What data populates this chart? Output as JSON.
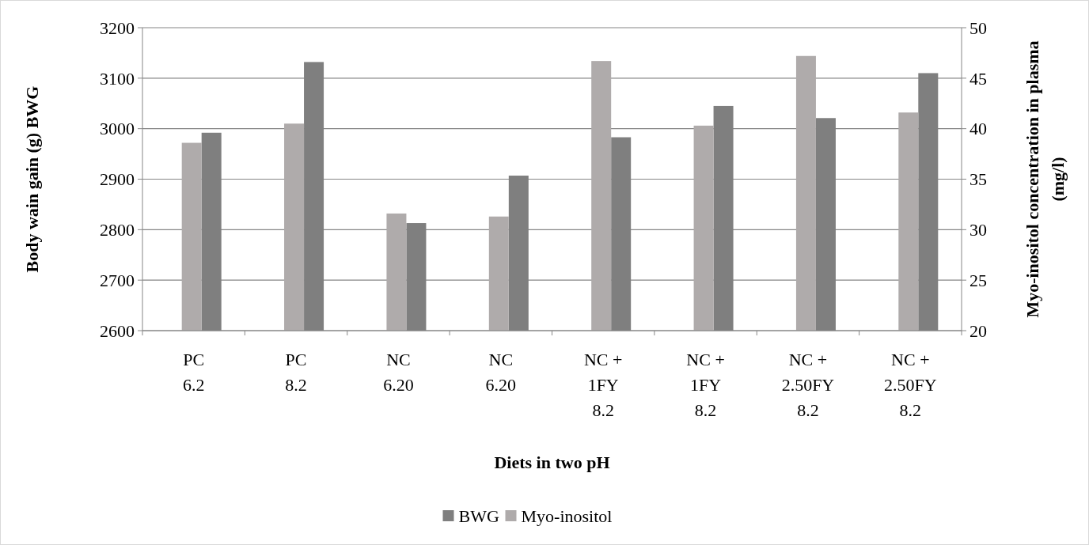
{
  "chart_data": {
    "type": "bar",
    "categories": [
      "PC\n6.2",
      "PC\n8.2",
      "NC\n6.20",
      "NC\n6.20",
      "NC +\n1FY\n8.2",
      "NC +\n1FY\n8.2",
      "NC +\n2.50FY\n8.2",
      "NC +\n2.50FY\n8.2"
    ],
    "series": [
      {
        "name": "BWG",
        "color": "#7f7f7f",
        "values": [
          2992,
          3132,
          2813,
          2907,
          2983,
          3045,
          3021,
          3110
        ]
      },
      {
        "name": "Myo-inositol",
        "color": "#afabab",
        "axis": "y2",
        "values": [
          38.6,
          40.5,
          31.6,
          31.3,
          46.7,
          40.3,
          47.2,
          41.6
        ]
      }
    ],
    "xlabel": "Diets in two pH",
    "ylabel": "Body wain gain (g) BWG",
    "y2label": "Myo-inositol concentration in plasma (mg/l)",
    "ylim": [
      2600,
      3200
    ],
    "yticks": [
      2600,
      2700,
      2800,
      2900,
      3000,
      3100,
      3200
    ],
    "y2lim": [
      20,
      50
    ],
    "y2ticks": [
      20,
      25,
      30,
      35,
      40,
      45,
      50
    ],
    "grid": "y",
    "legend": "bottom"
  }
}
